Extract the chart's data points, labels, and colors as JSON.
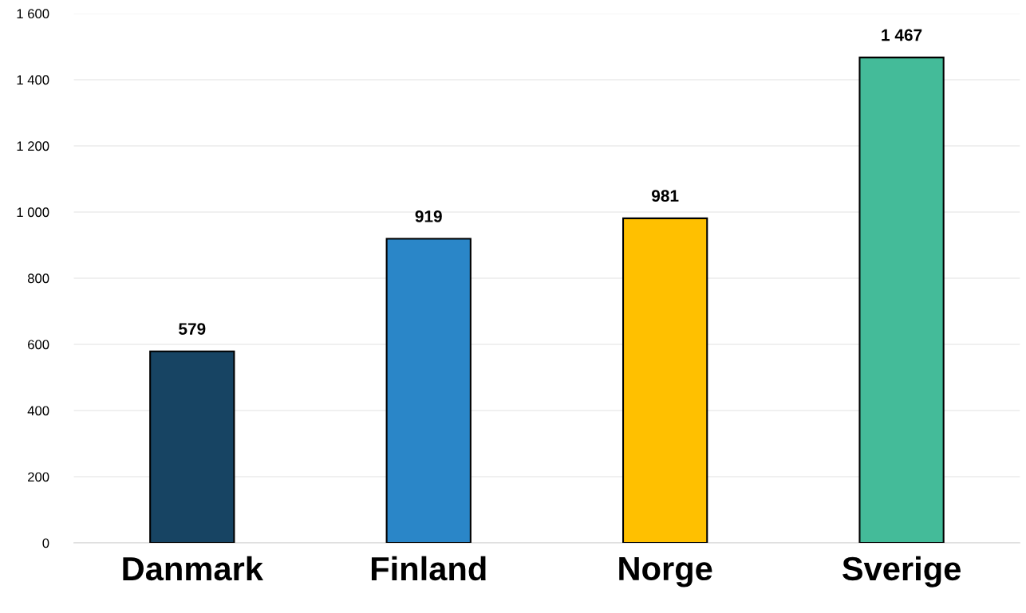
{
  "chart_data": {
    "type": "bar",
    "categories": [
      "Danmark",
      "Finland",
      "Norge",
      "Sverige"
    ],
    "values": [
      579,
      919,
      981,
      1467
    ],
    "colors": [
      "#174463",
      "#2a86c8",
      "#ffc000",
      "#44bb99"
    ],
    "value_labels": [
      "579",
      "919",
      "981",
      "1 467"
    ],
    "ylim": [
      0,
      1600
    ],
    "yticks": [
      0,
      200,
      400,
      600,
      800,
      {
        "value": 1000,
        "label": "1 000"
      },
      {
        "value": 1200,
        "label": "1 200"
      },
      {
        "value": 1400,
        "label": "1 400"
      },
      {
        "value": 1600,
        "label": "1 600"
      }
    ],
    "grid": "y"
  }
}
